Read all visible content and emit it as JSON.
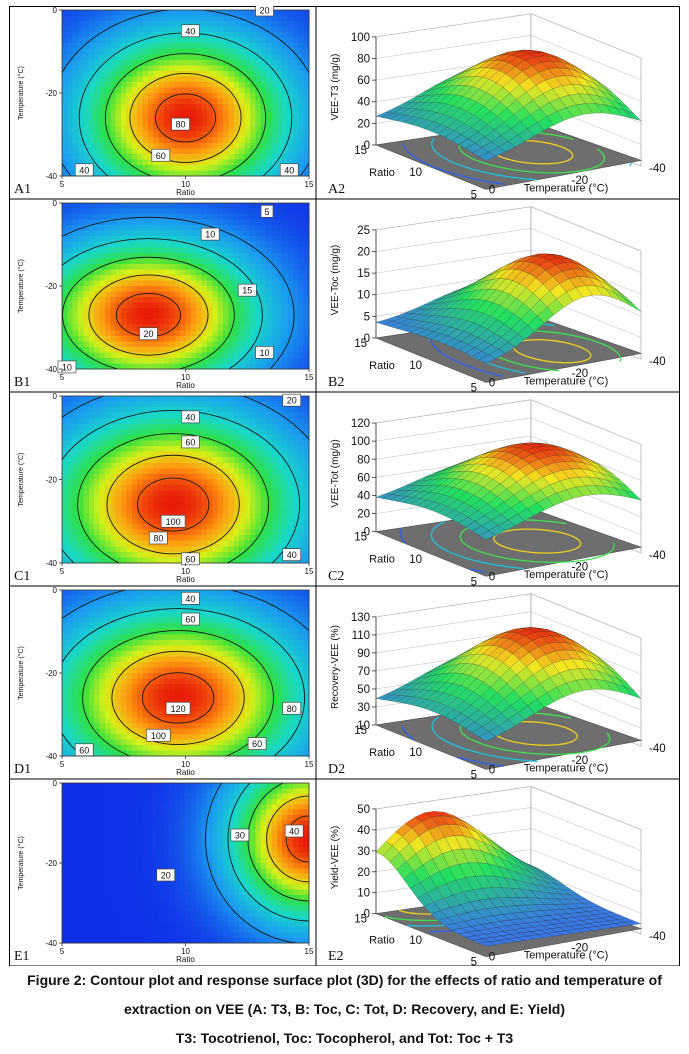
{
  "figure": {
    "caption_lines": [
      "Figure 2: Contour plot and response surface plot (3D) for the effects of ratio and temperature of",
      "extraction on VEE (A: T3, B: Toc, C: Tot, D: Recovery, and E: Yield)",
      "T3: Tocotrienol, Toc: Tocopherol, and Tot: Toc + T3"
    ]
  },
  "colors": {
    "surface_low": "#3a78e8",
    "surface_mid": "#22e060",
    "surface_high": "#e82c10",
    "floor": "#6e6e6e"
  },
  "chart_data": [
    {
      "id": "A1",
      "type": "contour",
      "panel_label": "A1",
      "xlabel": "Ratio",
      "ylabel": "Temperature (°C)",
      "xlim": [
        5,
        15
      ],
      "ylim": [
        -40,
        0
      ],
      "x_ticks": [
        "5",
        "10",
        "15"
      ],
      "y_ticks": [
        "0",
        "-20",
        "-40"
      ],
      "contour_labels": [
        {
          "text": "20",
          "x": 13.2,
          "y": 0
        },
        {
          "text": "40",
          "x": 10.2,
          "y": -5
        },
        {
          "text": "80",
          "x": 9.8,
          "y": -27.5
        },
        {
          "text": "60",
          "x": 9.0,
          "y": -35
        },
        {
          "text": "40",
          "x": 5.9,
          "y": -38.5
        },
        {
          "text": "40",
          "x": 14.2,
          "y": -38.5
        }
      ],
      "surface_model": {
        "peak": [
          10,
          -26
        ],
        "spread": [
          4.2,
          20
        ],
        "vmin": 0,
        "vmax": 100
      }
    },
    {
      "id": "A2",
      "type": "surface3d",
      "panel_label": "A2",
      "zlabel": "VEE-T3 (mg/g)",
      "x_label": "Temperature (°C)",
      "y_label": "Ratio",
      "zlim": [
        0,
        100
      ],
      "z_ticks": [
        "0",
        "20",
        "40",
        "60",
        "80",
        "100"
      ],
      "temp_ticks": [
        "-20",
        "-40"
      ],
      "temp_zero": "0",
      "ratio_ticks": [
        "15",
        "10",
        "5"
      ],
      "surface_model": {
        "peak": [
          10,
          -26
        ],
        "spread": [
          6,
          20
        ],
        "zmin": 20,
        "zmax": 92
      }
    },
    {
      "id": "B1",
      "type": "contour",
      "panel_label": "B1",
      "xlabel": "Ratio",
      "ylabel": "Temperature (°C)",
      "xlim": [
        5,
        15
      ],
      "ylim": [
        -40,
        0
      ],
      "x_ticks": [
        "5",
        "10",
        "15"
      ],
      "y_ticks": [
        "0",
        "-20",
        "-40"
      ],
      "contour_labels": [
        {
          "text": "5",
          "x": 13.3,
          "y": -2
        },
        {
          "text": "10",
          "x": 11.0,
          "y": -7.5
        },
        {
          "text": "15",
          "x": 12.5,
          "y": -21
        },
        {
          "text": "20",
          "x": 8.5,
          "y": -31.5
        },
        {
          "text": "10",
          "x": 5.2,
          "y": -39.5
        },
        {
          "text": "10",
          "x": 13.2,
          "y": -36
        }
      ],
      "surface_model": {
        "peak": [
          8.5,
          -27
        ],
        "spread": [
          4.5,
          18
        ],
        "vmin": 0,
        "vmax": 25
      }
    },
    {
      "id": "B2",
      "type": "surface3d",
      "panel_label": "B2",
      "zlabel": "VEE-Toc (mg/g)",
      "x_label": "Temperature (°C)",
      "y_label": "Ratio",
      "zlim": [
        0,
        25
      ],
      "z_ticks": [
        "0",
        "5",
        "10",
        "15",
        "20",
        "25"
      ],
      "temp_ticks": [
        "-20",
        "-40"
      ],
      "temp_zero": "0",
      "ratio_ticks": [
        "15",
        "10",
        "5"
      ],
      "surface_model": {
        "peak": [
          8.5,
          -27
        ],
        "spread": [
          6,
          18
        ],
        "zmin": 3,
        "zmax": 22
      }
    },
    {
      "id": "C1",
      "type": "contour",
      "panel_label": "C1",
      "xlabel": "Ratio",
      "ylabel": "Temperature (°C)",
      "xlim": [
        5,
        15
      ],
      "ylim": [
        -40,
        0
      ],
      "x_ticks": [
        "5",
        "10",
        "15"
      ],
      "y_ticks": [
        "0",
        "-20",
        "-40"
      ],
      "contour_labels": [
        {
          "text": "20",
          "x": 14.3,
          "y": -1
        },
        {
          "text": "40",
          "x": 10.2,
          "y": -5
        },
        {
          "text": "60",
          "x": 10.2,
          "y": -11
        },
        {
          "text": "100",
          "x": 9.5,
          "y": -30
        },
        {
          "text": "80",
          "x": 8.9,
          "y": -34
        },
        {
          "text": "60",
          "x": 10.2,
          "y": -39
        },
        {
          "text": "40",
          "x": 14.3,
          "y": -38
        }
      ],
      "surface_model": {
        "peak": [
          9.5,
          -26
        ],
        "spread": [
          5,
          22
        ],
        "vmin": 0,
        "vmax": 120
      }
    },
    {
      "id": "C2",
      "type": "surface3d",
      "panel_label": "C2",
      "zlabel": "VEE-Tot (mg/g)",
      "x_label": "Temperature (°C)",
      "y_label": "Ratio",
      "zlim": [
        0,
        120
      ],
      "z_ticks": [
        "0",
        "20",
        "40",
        "60",
        "80",
        "100",
        "120"
      ],
      "temp_ticks": [
        "-20",
        "-40"
      ],
      "temp_zero": "0",
      "ratio_ticks": [
        "15",
        "10",
        "5"
      ],
      "surface_model": {
        "peak": [
          9.5,
          -26
        ],
        "spread": [
          6,
          22
        ],
        "zmin": 30,
        "zmax": 105
      }
    },
    {
      "id": "D1",
      "type": "contour",
      "panel_label": "D1",
      "xlabel": "Ratio",
      "ylabel": "Temperature (°C)",
      "xlim": [
        5,
        15
      ],
      "ylim": [
        -40,
        0
      ],
      "x_ticks": [
        "5",
        "10",
        "15"
      ],
      "y_ticks": [
        "0",
        "-20",
        "-40"
      ],
      "contour_labels": [
        {
          "text": "40",
          "x": 10.2,
          "y": -2
        },
        {
          "text": "60",
          "x": 10.2,
          "y": -7
        },
        {
          "text": "120",
          "x": 9.7,
          "y": -28.5
        },
        {
          "text": "100",
          "x": 8.9,
          "y": -35
        },
        {
          "text": "80",
          "x": 14.3,
          "y": -28.5
        },
        {
          "text": "60",
          "x": 5.9,
          "y": -38.5
        },
        {
          "text": "60",
          "x": 12.9,
          "y": -37
        }
      ],
      "surface_model": {
        "peak": [
          9.7,
          -26
        ],
        "spread": [
          5,
          21
        ],
        "vmin": 0,
        "vmax": 140
      }
    },
    {
      "id": "D2",
      "type": "surface3d",
      "panel_label": "D2",
      "zlabel": "Recovery-VEE (%)",
      "x_label": "Temperature (°C)",
      "y_label": "Ratio",
      "zlim": [
        10,
        130
      ],
      "z_ticks": [
        "10",
        "30",
        "50",
        "70",
        "90",
        "110",
        "130"
      ],
      "temp_ticks": [
        "-20",
        "-40"
      ],
      "temp_zero": "0",
      "ratio_ticks": [
        "15",
        "10",
        "5"
      ],
      "surface_model": {
        "peak": [
          9.7,
          -26
        ],
        "spread": [
          6,
          21
        ],
        "zmin": 30,
        "zmax": 125
      }
    },
    {
      "id": "E1",
      "type": "contour",
      "panel_label": "E1",
      "xlabel": "Ratio",
      "ylabel": "Temperature (°C)",
      "xlim": [
        5,
        15
      ],
      "ylim": [
        -40,
        0
      ],
      "x_ticks": [
        "5",
        "10",
        "15"
      ],
      "y_ticks": [
        "0",
        "-20",
        "-40"
      ],
      "contour_labels": [
        {
          "text": "30",
          "x": 12.2,
          "y": -13
        },
        {
          "text": "40",
          "x": 14.4,
          "y": -12
        },
        {
          "text": "20",
          "x": 9.2,
          "y": -23
        }
      ],
      "surface_model": {
        "peak": [
          15,
          -14
        ],
        "spread": [
          3.2,
          20
        ],
        "vmin": 0,
        "vmax": 50
      }
    },
    {
      "id": "E2",
      "type": "surface3d",
      "panel_label": "E2",
      "zlabel": "Yield-VEE (%)",
      "x_label": "Temperature (°C)",
      "y_label": "Ratio",
      "zlim": [
        0,
        50
      ],
      "z_ticks": [
        "0",
        "10",
        "20",
        "30",
        "40",
        "50"
      ],
      "temp_ticks": [
        "-20",
        "-40"
      ],
      "temp_zero": "0",
      "ratio_ticks": [
        "15",
        "10",
        "5"
      ],
      "surface_model": {
        "peak": [
          15,
          -14
        ],
        "spread": [
          4,
          20
        ],
        "zmin": 5,
        "zmax": 45
      }
    }
  ]
}
